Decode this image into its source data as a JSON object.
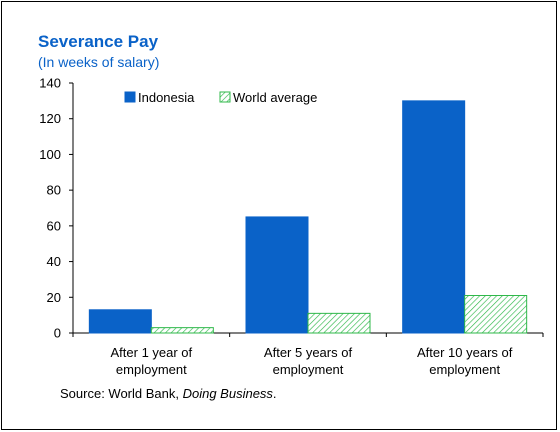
{
  "chart_data": {
    "type": "bar",
    "title": "Severance Pay",
    "subtitle": "(In weeks of salary)",
    "categories": [
      [
        "After 1 year of",
        "employment"
      ],
      [
        "After 5 years of",
        "employment"
      ],
      [
        "After 10 years of",
        "employment"
      ]
    ],
    "series": [
      {
        "name": "Indonesia",
        "values": [
          13,
          65,
          130
        ],
        "color": "#0a62c8",
        "style": "solid"
      },
      {
        "name": "World average",
        "values": [
          3,
          11,
          21
        ],
        "color": "#2fb84a",
        "style": "hatched"
      }
    ],
    "ylim": [
      0,
      140
    ],
    "yticks": [
      0,
      20,
      40,
      60,
      80,
      100,
      120,
      140
    ],
    "grid": false,
    "legend": "top-left"
  },
  "source": {
    "prefix": "Source: World Bank, ",
    "publication": "Doing Business",
    "suffix": "."
  }
}
